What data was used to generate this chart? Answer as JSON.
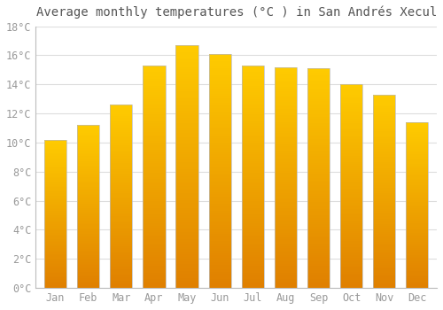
{
  "title": "Average monthly temperatures (°C ) in San Andrés Xecul",
  "months": [
    "Jan",
    "Feb",
    "Mar",
    "Apr",
    "May",
    "Jun",
    "Jul",
    "Aug",
    "Sep",
    "Oct",
    "Nov",
    "Dec"
  ],
  "values": [
    10.2,
    11.2,
    12.6,
    15.3,
    16.7,
    16.1,
    15.3,
    15.2,
    15.1,
    14.0,
    13.3,
    11.4
  ],
  "bar_color_center": "#FFD700",
  "bar_color_edge": "#F5A800",
  "bar_color_bottom": "#E08000",
  "bar_border_color": "#BBBBBB",
  "ylim": [
    0,
    18
  ],
  "ytick_step": 2,
  "background_color": "#FFFFFF",
  "grid_color": "#DDDDDD",
  "title_fontsize": 10,
  "tick_fontsize": 8.5,
  "tick_color": "#999999",
  "title_color": "#555555",
  "title_font": "monospace",
  "bar_width": 0.68
}
